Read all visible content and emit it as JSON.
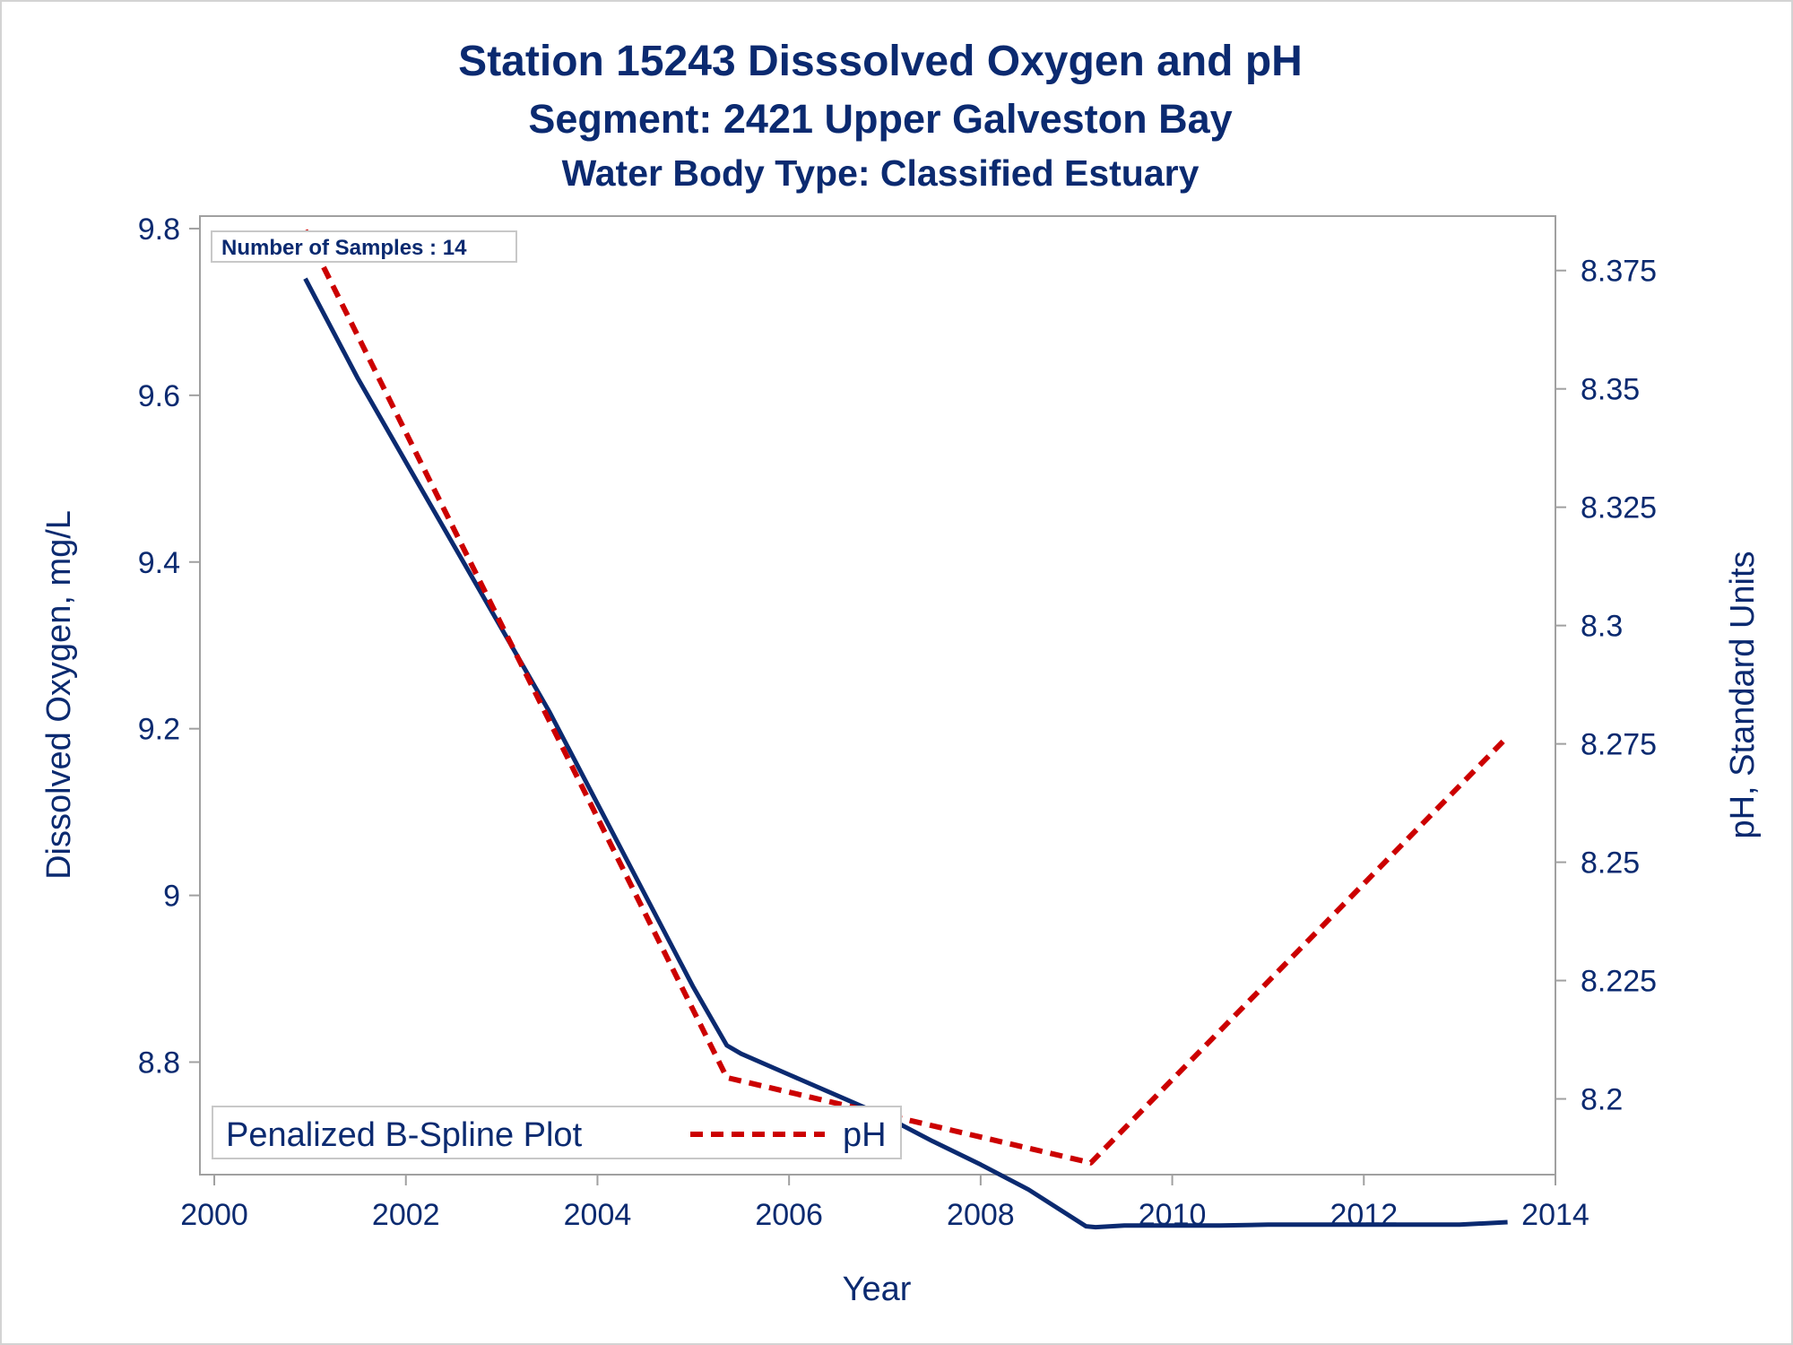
{
  "titles": {
    "line1": "Station 15243    Disssolved Oxygen and pH",
    "line2": "Segment: 2421  Upper Galveston Bay",
    "line3": "Water Body Type: Classified Estuary"
  },
  "annotation": "Number of Samples : 14",
  "legend": {
    "title": "Penalized B-Spline Plot",
    "item_label": "pH"
  },
  "colors": {
    "do_line": "#0b2a70",
    "ph_line": "#cc0000",
    "axis": "#a0a0a0",
    "text": "#0b2a70"
  },
  "chart_data": {
    "type": "line",
    "xlabel": "Year",
    "ylabel": "Dissolved Oxygen, mg/L",
    "y2label": "pH, Standard Units",
    "xlim": [
      1999.85,
      2014.0
    ],
    "ylim": [
      8.665,
      9.815
    ],
    "y2lim": [
      8.184,
      8.3865
    ],
    "xticks": [
      2000,
      2002,
      2004,
      2006,
      2008,
      2010,
      2012,
      2014
    ],
    "yticks": [
      8.8,
      9.0,
      9.2,
      9.4,
      9.6,
      9.8
    ],
    "yticklabels": [
      "8.8",
      "9",
      "9.2",
      "9.4",
      "9.6",
      "9.8"
    ],
    "y2ticks": [
      8.2,
      8.225,
      8.25,
      8.275,
      8.3,
      8.325,
      8.35,
      8.375
    ],
    "y2ticklabels": [
      "8.2",
      "8.225",
      "8.25",
      "8.275",
      "8.3",
      "8.325",
      "8.35",
      "8.375"
    ],
    "grid": false,
    "legend_position": "bottom-left",
    "series": [
      {
        "axis": "left",
        "style": "solid",
        "x": [
          2000.95,
          2001.5,
          2002.0,
          2002.5,
          2003.0,
          2003.5,
          2004.0,
          2004.5,
          2005.0,
          2005.35,
          2005.5,
          2006.0,
          2006.5,
          2007.0,
          2007.5,
          2008.0,
          2008.5,
          2009.1,
          2009.2,
          2009.5,
          2010.0,
          2010.5,
          2011.0,
          2011.5,
          2012.0,
          2012.5,
          2013.0,
          2013.5
        ],
        "y": [
          9.74,
          9.62,
          9.52,
          9.42,
          9.32,
          9.22,
          9.11,
          9.0,
          8.89,
          8.82,
          8.81,
          8.785,
          8.76,
          8.735,
          8.705,
          8.677,
          8.647,
          8.603,
          8.602,
          8.604,
          8.604,
          8.604,
          8.605,
          8.605,
          8.605,
          8.605,
          8.605,
          8.608
        ]
      },
      {
        "name": "pH",
        "axis": "right",
        "style": "dashed",
        "x": [
          2000.95,
          2005.35,
          2009.15,
          2013.5
        ],
        "y": [
          8.3835,
          8.2045,
          8.1865,
          8.2765
        ]
      }
    ]
  }
}
